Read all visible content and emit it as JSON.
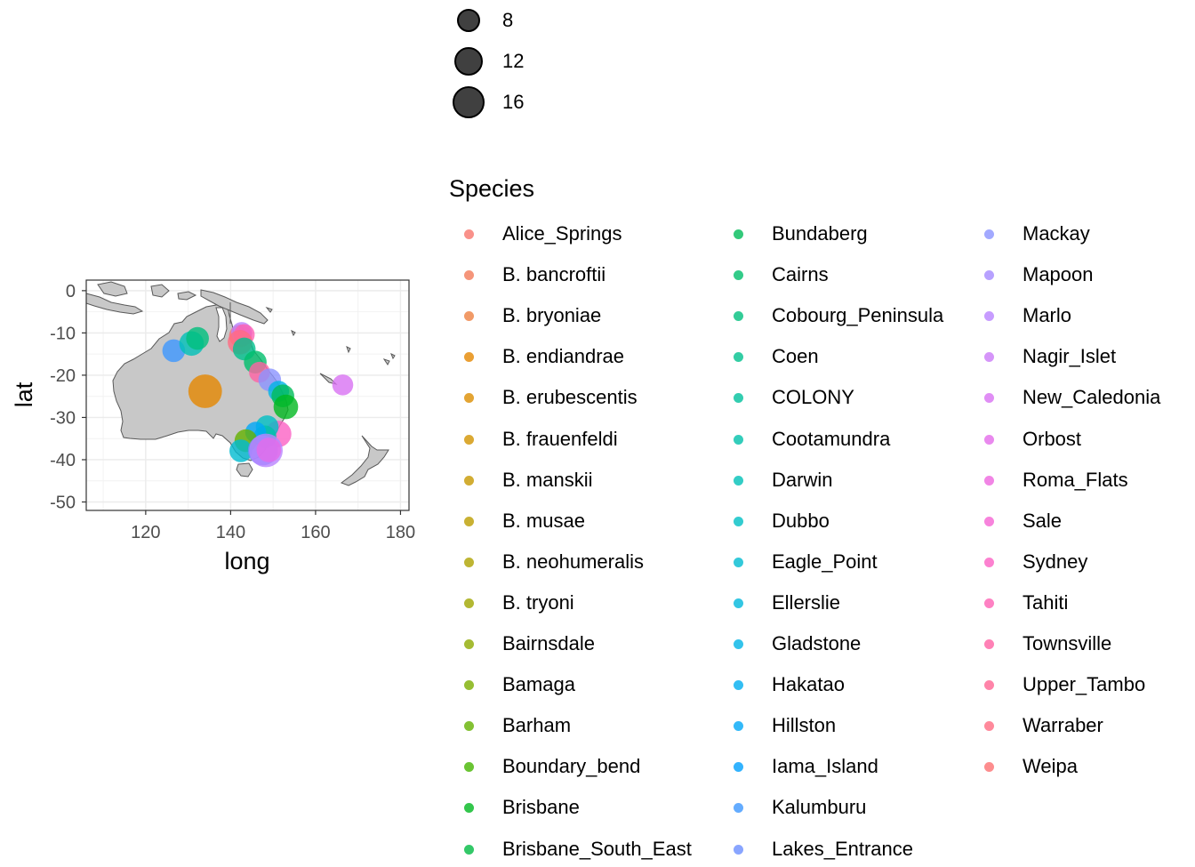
{
  "chart_data": {
    "type": "scatter",
    "title": "",
    "xlabel": "long",
    "ylabel": "lat",
    "xlim": [
      106,
      182
    ],
    "ylim": [
      -52,
      2.5
    ],
    "x_ticks": [
      120,
      140,
      160,
      180
    ],
    "y_ticks": [
      0,
      -10,
      -20,
      -30,
      -40,
      -50
    ],
    "grid": true,
    "basemap": "Australia / New Zealand / Pacific coastline, grey land",
    "size_legend": {
      "title": "",
      "entries": [
        {
          "label": "8",
          "value": 8
        },
        {
          "label": "12",
          "value": 12
        },
        {
          "label": "16",
          "value": 16
        }
      ]
    },
    "color_legend": {
      "title": "Species",
      "entries": [
        {
          "label": "Alice_Springs",
          "color": "#F8766D"
        },
        {
          "label": "B. bancroftii",
          "color": "#F37B59"
        },
        {
          "label": "B. bryoniae",
          "color": "#ED8141"
        },
        {
          "label": "B. endiandrae",
          "color": "#E58700"
        },
        {
          "label": "B. erubescentis",
          "color": "#DC8D00"
        },
        {
          "label": "B. frauenfeldi",
          "color": "#D29300"
        },
        {
          "label": "B. manskii",
          "color": "#C79800"
        },
        {
          "label": "B. musae",
          "color": "#BB9D00"
        },
        {
          "label": "B. neohumeralis",
          "color": "#AEA200"
        },
        {
          "label": "B. tryoni",
          "color": "#A0A600"
        },
        {
          "label": "Bairnsdale",
          "color": "#8FAA00"
        },
        {
          "label": "Bamaga",
          "color": "#7CAE00"
        },
        {
          "label": "Barham",
          "color": "#64B200"
        },
        {
          "label": "Boundary_bend",
          "color": "#45B500"
        },
        {
          "label": "Brisbane",
          "color": "#00B81F"
        },
        {
          "label": "Brisbane_South_East",
          "color": "#00BA42"
        },
        {
          "label": "Bundaberg",
          "color": "#00BC59"
        },
        {
          "label": "Cairns",
          "color": "#00BE6C"
        },
        {
          "label": "Cobourg_Peninsula",
          "color": "#00BF7D"
        },
        {
          "label": "Coen",
          "color": "#00C08D"
        },
        {
          "label": "COLONY",
          "color": "#00C19C"
        },
        {
          "label": "Cootamundra",
          "color": "#00C1AA"
        },
        {
          "label": "Darwin",
          "color": "#00C0B8"
        },
        {
          "label": "Dubbo",
          "color": "#00BFC4"
        },
        {
          "label": "Eagle_Point",
          "color": "#00BCD1"
        },
        {
          "label": "Ellerslie",
          "color": "#00B8DC"
        },
        {
          "label": "Gladstone",
          "color": "#00B4E6"
        },
        {
          "label": "Hakatao",
          "color": "#00AEF0"
        },
        {
          "label": "Hillston",
          "color": "#00A7F8"
        },
        {
          "label": "Iama_Island",
          "color": "#00A0FE"
        },
        {
          "label": "Kalumburu",
          "color": "#3D97FF"
        },
        {
          "label": "Lakes_Entrance",
          "color": "#6C8EFF"
        },
        {
          "label": "Mackay",
          "color": "#8B93FF"
        },
        {
          "label": "Mapoon",
          "color": "#A58AFF"
        },
        {
          "label": "Marlo",
          "color": "#B983FF"
        },
        {
          "label": "Nagir_Islet",
          "color": "#CA7BF8"
        },
        {
          "label": "New_Caledonia",
          "color": "#D872F2"
        },
        {
          "label": "Orbost",
          "color": "#E46BEA"
        },
        {
          "label": "Roma_Flats",
          "color": "#EE66DF"
        },
        {
          "label": "Sale",
          "color": "#F564D3"
        },
        {
          "label": "Sydney",
          "color": "#FB61C4"
        },
        {
          "label": "Tahiti",
          "color": "#FE61B4"
        },
        {
          "label": "Townsville",
          "color": "#FF62A4"
        },
        {
          "label": "Upper_Tambo",
          "color": "#FF6593"
        },
        {
          "label": "Warraber",
          "color": "#FF6C82"
        },
        {
          "label": "Weipa",
          "color": "#FC7172"
        }
      ]
    },
    "points": [
      {
        "long": 134.0,
        "lat": -23.8,
        "size": 16,
        "color": "#E58700"
      },
      {
        "long": 126.6,
        "lat": -14.2,
        "size": 10,
        "color": "#3D97FF"
      },
      {
        "long": 130.8,
        "lat": -12.5,
        "size": 11,
        "color": "#00C0B8"
      },
      {
        "long": 132.2,
        "lat": -11.3,
        "size": 10,
        "color": "#00BF7D"
      },
      {
        "long": 142.3,
        "lat": -10.7,
        "size": 10,
        "color": "#FC7172"
      },
      {
        "long": 142.6,
        "lat": -9.9,
        "size": 9,
        "color": "#B983FF"
      },
      {
        "long": 143.2,
        "lat": -10.4,
        "size": 9,
        "color": "#FE61B4"
      },
      {
        "long": 142.2,
        "lat": -12.2,
        "size": 11,
        "color": "#FF6C82"
      },
      {
        "long": 143.2,
        "lat": -13.8,
        "size": 10,
        "color": "#00C08D"
      },
      {
        "long": 145.8,
        "lat": -16.9,
        "size": 10,
        "color": "#00BE6C"
      },
      {
        "long": 146.8,
        "lat": -19.3,
        "size": 9,
        "color": "#FF62A4"
      },
      {
        "long": 149.2,
        "lat": -21.1,
        "size": 10,
        "color": "#8B93FF"
      },
      {
        "long": 151.3,
        "lat": -23.8,
        "size": 9,
        "color": "#00B4E6"
      },
      {
        "long": 152.3,
        "lat": -24.9,
        "size": 10,
        "color": "#00BC59"
      },
      {
        "long": 153.0,
        "lat": -27.5,
        "size": 11,
        "color": "#00B81F"
      },
      {
        "long": 166.4,
        "lat": -22.3,
        "size": 9,
        "color": "#D872F2"
      },
      {
        "long": 151.2,
        "lat": -33.9,
        "size": 12,
        "color": "#FB61C4"
      },
      {
        "long": 148.6,
        "lat": -32.2,
        "size": 10,
        "color": "#00BFC4"
      },
      {
        "long": 148.1,
        "lat": -34.6,
        "size": 10,
        "color": "#00C1AA"
      },
      {
        "long": 145.9,
        "lat": -33.5,
        "size": 9,
        "color": "#00A7F8"
      },
      {
        "long": 143.6,
        "lat": -35.5,
        "size": 10,
        "color": "#64B200"
      },
      {
        "long": 142.4,
        "lat": -37.9,
        "size": 10,
        "color": "#00BCD1"
      },
      {
        "long": 147.6,
        "lat": -37.8,
        "size": 14,
        "color": "#6C8EFF"
      },
      {
        "long": 148.3,
        "lat": -37.8,
        "size": 16,
        "color": "#B983FF"
      },
      {
        "long": 149.0,
        "lat": -37.7,
        "size": 11,
        "color": "#E46BEA"
      }
    ]
  }
}
